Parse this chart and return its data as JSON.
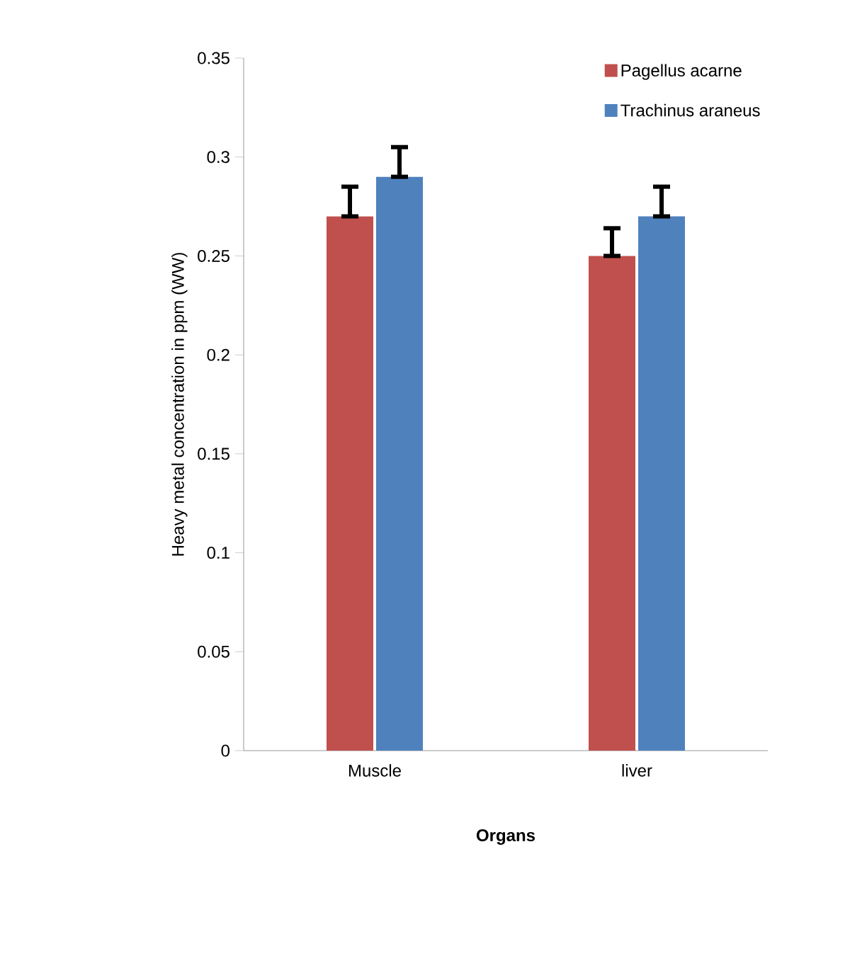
{
  "chart_data": {
    "type": "bar",
    "xlabel": "Organs",
    "ylabel": "Heavy metal concentration in ppm (WW)",
    "categories": [
      "Muscle",
      "liver"
    ],
    "series": [
      {
        "name": "Pagellus  acarne",
        "color": "#c0504d",
        "values": [
          0.27,
          0.25
        ],
        "errors": [
          [
            0.27,
            0.285
          ],
          [
            0.25,
            0.264
          ]
        ]
      },
      {
        "name": "Trachinus araneus",
        "color": "#4f81bd",
        "values": [
          0.29,
          0.27
        ],
        "errors": [
          [
            0.29,
            0.305
          ],
          [
            0.27,
            0.285
          ]
        ]
      }
    ],
    "ylim": [
      0,
      0.35
    ],
    "yticks": [
      0,
      0.05,
      0.1,
      0.15,
      0.2,
      0.25,
      0.3,
      0.35
    ],
    "grid": false,
    "legend": "top right"
  }
}
